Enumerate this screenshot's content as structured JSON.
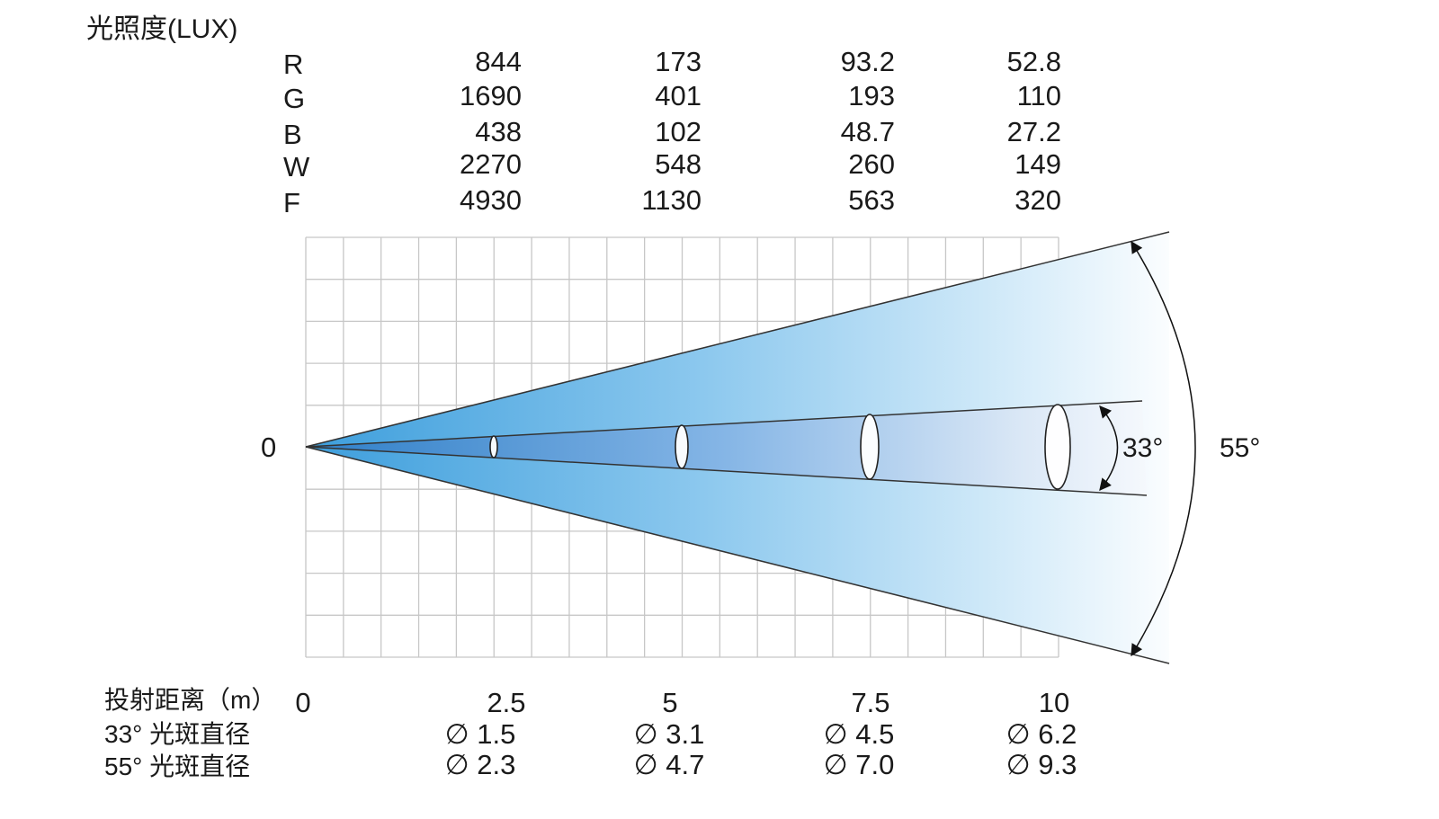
{
  "title": "光照度(LUX)",
  "illuminance": {
    "rows": [
      {
        "label": "R",
        "values": [
          "844",
          "173",
          "93.2",
          "52.8"
        ]
      },
      {
        "label": "G",
        "values": [
          "1690",
          "401",
          "193",
          "110"
        ]
      },
      {
        "label": "B",
        "values": [
          "438",
          "102",
          "48.7",
          "27.2"
        ]
      },
      {
        "label": "W",
        "values": [
          "2270",
          "548",
          "260",
          "149"
        ]
      },
      {
        "label": "F",
        "values": [
          "4930",
          "1130",
          "563",
          "320"
        ]
      }
    ]
  },
  "origin_label": "0",
  "angles": {
    "narrow": "33°",
    "wide": "55°"
  },
  "footer": {
    "distance_label": "投射距离（m）",
    "distance_values": [
      "0",
      "2.5",
      "5",
      "7.5",
      "10"
    ],
    "narrow_label": "33° 光斑直径",
    "narrow_values": [
      "∅ 1.5",
      "∅ 3.1",
      "∅ 4.5",
      "∅ 6.2"
    ],
    "wide_label": "55° 光斑直径",
    "wide_values": [
      "∅ 2.3",
      "∅ 4.7",
      "∅ 7.0",
      "∅ 9.3"
    ]
  },
  "colors": {
    "beam_near": "#4aa6df",
    "beam_far": "#ffffff",
    "grid": "#c7c7c7"
  }
}
